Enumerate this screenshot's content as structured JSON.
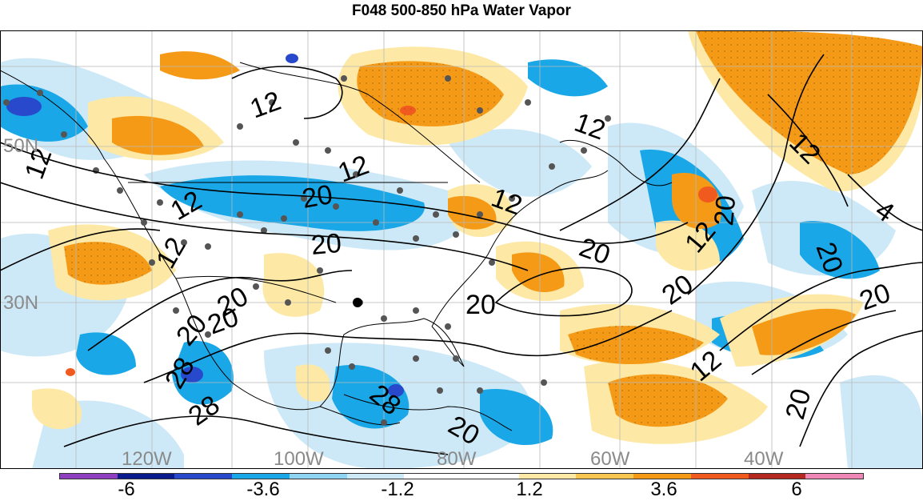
{
  "title": "F048 500-850 hPa Water Vapor",
  "lat_labels": [
    "50N",
    "30N"
  ],
  "lon_labels": [
    "120W",
    "100W",
    "80W",
    "60W",
    "40W"
  ],
  "contour_labels": [
    "12",
    "12",
    "12",
    "12",
    "12",
    "12",
    "12",
    "4",
    "20",
    "20",
    "20",
    "20",
    "20",
    "20",
    "20",
    "20",
    "20",
    "20",
    "20",
    "12",
    "12",
    "20",
    "28",
    "28",
    "28",
    "20",
    "12"
  ],
  "colorbar": {
    "labels": [
      "-6",
      "-3.6",
      "-1.2",
      "1.2",
      "3.6",
      "6"
    ],
    "colors": [
      "#8e3fbf",
      "#0a1c8c",
      "#2849cc",
      "#1aa7e8",
      "#8fd4f2",
      "#cde9f7",
      "#ffffff",
      "#ffffff",
      "#fde9a5",
      "#f8c651",
      "#f59a17",
      "#f05a1e",
      "#b5281f",
      "#ef87b6"
    ]
  },
  "palette": {
    "blue_light": "#cde9f7",
    "blue_mid": "#8fd4f2",
    "blue": "#1aa7e8",
    "blue_dark": "#2849cc",
    "yellow_light": "#fde9a5",
    "yellow": "#f8c651",
    "orange": "#f59a17",
    "red": "#f05a1e"
  }
}
